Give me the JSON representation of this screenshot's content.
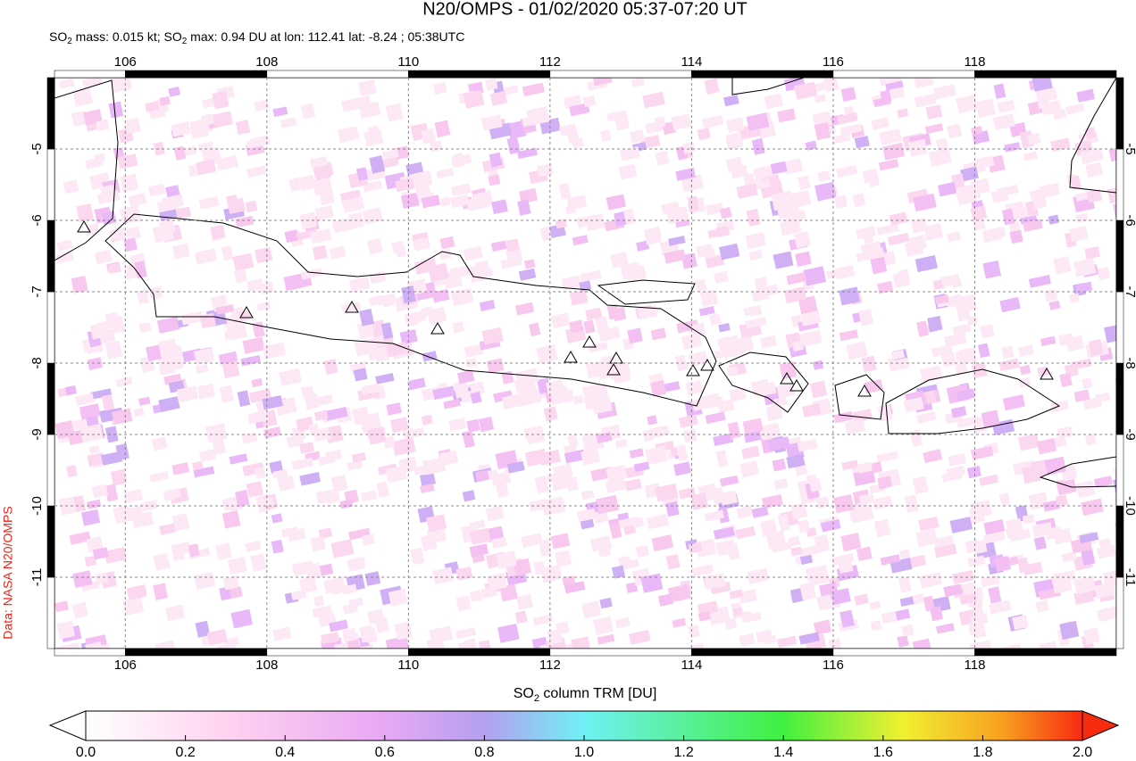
{
  "chart_data": {
    "type": "map",
    "title": "N20/OMPS - 01/02/2020 05:37-07:20 UT",
    "subtitle": [
      "SO",
      "2",
      " mass: 0.015 kt; SO",
      "2",
      " max: 0.94 DU at lon: 112.41 lat: -8.24 ; 05:38UTC"
    ],
    "credit": "Data: NASA N20/OMPS",
    "xlim": [
      105,
      120
    ],
    "xticks": [
      106,
      108,
      110,
      112,
      114,
      116,
      118
    ],
    "ylim": [
      -12,
      -4
    ],
    "yticks": [
      -11,
      -10,
      -9,
      -8,
      -7,
      -6,
      -5
    ],
    "grid": true,
    "colorbar": {
      "label": [
        "SO",
        "2",
        " column TRM [DU]"
      ],
      "lim": [
        0,
        2
      ],
      "ticks": [
        {
          "value": 0,
          "label": "0.0"
        },
        {
          "value": 0.2,
          "label": "0.2"
        },
        {
          "value": 0.4,
          "label": "0.4"
        },
        {
          "value": 0.6,
          "label": "0.6"
        },
        {
          "value": 0.8,
          "label": "0.8"
        },
        {
          "value": 1,
          "label": "1.0"
        },
        {
          "value": 1.2,
          "label": "1.2"
        },
        {
          "value": 1.4,
          "label": "1.4"
        },
        {
          "value": 1.6,
          "label": "1.6"
        },
        {
          "value": 1.8,
          "label": "1.8"
        },
        {
          "value": 2,
          "label": "2.0"
        }
      ]
    }
  }
}
